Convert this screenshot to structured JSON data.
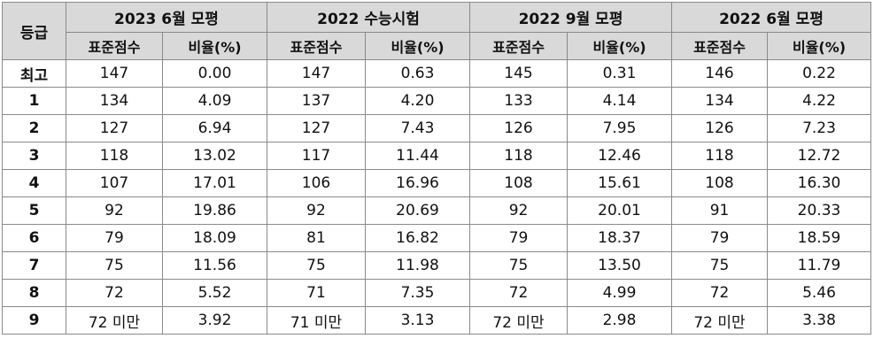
{
  "table": {
    "grade_header": "등급",
    "exams": [
      {
        "title": "2023 6월 모평"
      },
      {
        "title": "2022 수능시험"
      },
      {
        "title": "2022 9월 모평"
      },
      {
        "title": "2022 6월 모평"
      }
    ],
    "sub_headers": [
      "표준점수",
      "비율(%)",
      "표준점수",
      "비율(%)",
      "표준점수",
      "비율(%)",
      "표준점수",
      "비율(%)"
    ],
    "rows": [
      {
        "grade": "최고",
        "cells": [
          "147",
          "0.00",
          "147",
          "0.63",
          "145",
          "0.31",
          "146",
          "0.22"
        ]
      },
      {
        "grade": "1",
        "cells": [
          "134",
          "4.09",
          "137",
          "4.20",
          "133",
          "4.14",
          "134",
          "4.22"
        ]
      },
      {
        "grade": "2",
        "cells": [
          "127",
          "6.94",
          "127",
          "7.43",
          "126",
          "7.95",
          "126",
          "7.23"
        ]
      },
      {
        "grade": "3",
        "cells": [
          "118",
          "13.02",
          "117",
          "11.44",
          "118",
          "12.46",
          "118",
          "12.72"
        ]
      },
      {
        "grade": "4",
        "cells": [
          "107",
          "17.01",
          "106",
          "16.96",
          "108",
          "15.61",
          "108",
          "16.30"
        ]
      },
      {
        "grade": "5",
        "cells": [
          "92",
          "19.86",
          "92",
          "20.69",
          "92",
          "20.01",
          "91",
          "20.33"
        ]
      },
      {
        "grade": "6",
        "cells": [
          "79",
          "18.09",
          "81",
          "16.82",
          "79",
          "18.37",
          "79",
          "18.59"
        ]
      },
      {
        "grade": "7",
        "cells": [
          "75",
          "11.56",
          "75",
          "11.98",
          "75",
          "13.50",
          "75",
          "11.79"
        ]
      },
      {
        "grade": "8",
        "cells": [
          "72",
          "5.52",
          "71",
          "7.35",
          "72",
          "4.99",
          "72",
          "5.46"
        ]
      },
      {
        "grade": "9",
        "cells": [
          "72 미만",
          "3.92",
          "71 미만",
          "3.13",
          "72 미만",
          "2.98",
          "72 미만",
          "3.38"
        ]
      }
    ]
  }
}
